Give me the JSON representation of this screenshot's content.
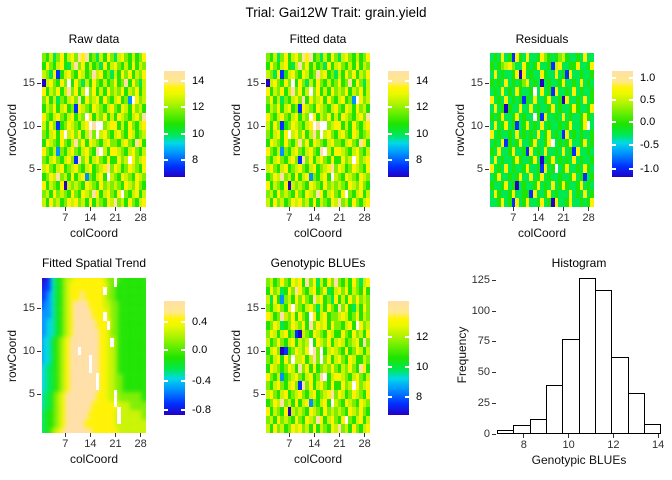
{
  "title": "Trial: Gai12W Trait: grain.yield",
  "palette": {
    "comment": "topo-colors style scale; grid chars 0-9 map to levels low to high, '.' = missing plot (white)",
    "levels": [
      "#2300C8",
      "#0030FF",
      "#0090FF",
      "#00D8E0",
      "#00E852",
      "#1EE400",
      "#7CEE00",
      "#C8F400",
      "#FFF200",
      "#FFDFA6"
    ],
    "missing": "#FFFFFF"
  },
  "colorbar_gradient": [
    [
      "#2300C8",
      0
    ],
    [
      "#0030FF",
      10
    ],
    [
      "#0090FF",
      22
    ],
    [
      "#00D8E8",
      32
    ],
    [
      "#00E852",
      40
    ],
    [
      "#1EE400",
      50
    ],
    [
      "#66EE00",
      60
    ],
    [
      "#B4F400",
      70
    ],
    [
      "#E8F800",
      78
    ],
    [
      "#FFF400",
      84
    ],
    [
      "#FFE98C",
      90
    ],
    [
      "#FFDFA6",
      100
    ]
  ],
  "chart_data": [
    {
      "type": "heatmap",
      "title": "Raw data",
      "xlabel": "colCoord",
      "ylabel": "rowCoord",
      "x_ticks": [
        7,
        14,
        21,
        28
      ],
      "y_ticks": [
        5,
        10,
        15
      ],
      "n_cols": 29,
      "n_rows": 18,
      "value_domain": [
        6.7,
        14.7
      ],
      "colorbar": [
        {
          "label": "14",
          "f": 0.09
        },
        {
          "label": "12",
          "f": 0.34
        },
        {
          "label": "10",
          "f": 0.59
        },
        {
          "label": "8",
          "f": 0.84
        }
      ],
      "grid_rows": [
        "65746857869895647586478657568",
        "58657854796857564857865758576",
        "76481578658756978564758685768",
        "0786586.586475865756856958647",
        "857685796857.6857586768576857",
        "6857465786958678586578562.867",
        "57685785618765876578658758675",
        "865786578576.8576857587657869",
        "7586156876578.9..678857586578",
        "657858.78685796.7865786587567",
        "58765865796858765786657865985",
        "8657265786578659.758876578657",
        "657865786196857865855867.8678",
        "78657856786578567896875687658",
        "568796758578265785.7658765876",
        "85765807676587658676765876865",
        "6758676586587698578658.657857",
        "75867568786758576587967586578"
      ]
    },
    {
      "type": "heatmap",
      "title": "Fitted data",
      "xlabel": "colCoord",
      "ylabel": "rowCoord",
      "x_ticks": [
        7,
        14,
        21,
        28
      ],
      "y_ticks": [
        5,
        10,
        15
      ],
      "n_cols": 29,
      "n_rows": 18,
      "value_domain": [
        6.7,
        14.7
      ],
      "colorbar": [
        {
          "label": "14",
          "f": 0.09
        },
        {
          "label": "12",
          "f": 0.34
        },
        {
          "label": "10",
          "f": 0.59
        },
        {
          "label": "8",
          "f": 0.84
        }
      ],
      "grid_rows": [
        "65746857869895647586478657568",
        "58657854796857564857865758576",
        "76481578658756978564758685768",
        "0786586.586475865756856958647",
        "857685796857.6857586768576857",
        "6857465786958678586578562.867",
        "57685785618765876578658758675",
        "865786578576.8576857587657869",
        "7586156876578.9..678857586578",
        "657858.78685796.7865786587567",
        "58765865796858765786657865985",
        "8657265786578659.758876578657",
        "657865786196857865855867.8678",
        "78657856786578567896875687658",
        "568796758578265785.7658765876",
        "85765807676587658676765876865",
        "6758676586587698578658.657857",
        "75867568786758576587967586578"
      ]
    },
    {
      "type": "heatmap",
      "title": "Residuals",
      "xlabel": "colCoord",
      "ylabel": "rowCoord",
      "x_ticks": [
        7,
        14,
        21,
        28
      ],
      "y_ticks": [
        5,
        10,
        15
      ],
      "n_cols": 29,
      "n_rows": 18,
      "value_domain": [
        -1.15,
        1.1
      ],
      "colorbar": [
        {
          "label": "1.0",
          "f": 0.07
        },
        {
          "label": "0.5",
          "f": 0.27
        },
        {
          "label": "0.0",
          "f": 0.48
        },
        {
          "label": "-0.5",
          "f": 0.7
        },
        {
          "label": "-1.0",
          "f": 0.92
        }
      ],
      "grid_rows": [
        "45484518548445865456754454844",
        "54567864485458445178445584458",
        "48454458084544854484518445445",
        "54548454568454045445844548454",
        "454845485445.4845184454845445",
        "84548454515484458445084454845",
        "48450544844845445845445854458",
        "545844584544.5184454845445854",
        "484584514584548454454584458.4",
        "84544548454548458454184545445",
        "45481545844584458.45458445845",
        "54844584451845484454845184454",
        "48454458544584045845454845445",
        "845484544584451845.4584454854",
        "45844545844845845445445845145",
        "54458450454458454845854458454",
        "48544584455184458454448454845",
        "44584518458445845084458445458"
      ]
    },
    {
      "type": "heatmap-smooth",
      "title": "Fitted Spatial Trend",
      "xlabel": "colCoord",
      "ylabel": "rowCoord",
      "x_ticks": [
        7,
        14,
        21,
        28
      ],
      "y_ticks": [
        5,
        10,
        15
      ],
      "n_cols": 29,
      "n_rows": 18,
      "value_domain": [
        -0.85,
        0.65
      ],
      "colorbar": [
        {
          "label": "0.4",
          "f": 0.18
        },
        {
          "label": "0.0",
          "f": 0.43
        },
        {
          "label": "-0.4",
          "f": 0.7
        },
        {
          "label": "-0.8",
          "f": 0.96
        }
      ],
      "grid_rows": [
        "00134567788888888766.55555555",
        "01134567888888888.66555555555",
        "11234567888988888766555555555",
        "12234567899998888776655555555",
        "22234567899999888.76655555555",
        "223345678999999888.6655555555",
        "22334567899999998876655555555",
        "2334567899999999887.655555555",
        "2334567899.999998877655555555",
        "2334567899999.998877655555555",
        "3344567899999.998877655555555",
        "334456789999999.8877665555555",
        "334456789999999.8877665555555",
        "34456789999999988877.66666655",
        "34456789999999888888.77766666",
        "445567899999988888887.7777766",
        "445567899999888888887.7777777",
        "44567899999999888888877777777"
      ]
    },
    {
      "type": "heatmap",
      "title": "Genotypic BLUEs",
      "xlabel": "colCoord",
      "ylabel": "rowCoord",
      "x_ticks": [
        7,
        14,
        21,
        28
      ],
      "y_ticks": [
        5,
        10,
        15
      ],
      "n_cols": 29,
      "n_rows": 18,
      "value_domain": [
        7.0,
        13.4
      ],
      "colorbar": [
        {
          "label": "12",
          "f": 0.32
        },
        {
          "label": "10",
          "f": 0.58
        },
        {
          "label": "8",
          "f": 0.84
        }
      ],
      "grid_rows": [
        "67568658785968475869657586478",
        "58674586986578568457868576585",
        "74852675868659785648575868676",
        "6578658.765786475865968547586",
        "875697685865.8578566787568576",
        "5687456876859687858665785.867",
        "68757856107658765875586586758",
        "756865785767.5876857875678596",
        "578601568768.96.5787658568757",
        "6578586.7785796.6857865875576",
        "58765687596858567686576865985",
        "8657256786578569.578876578657",
        "657865786196857865855867.8678",
        "78657856786578567896875687658",
        "568796758578265785.7658765876",
        "85765807676587658676765876865",
        "6758676586587698578658.657857",
        "75867568786758576587967586578"
      ]
    },
    {
      "type": "histogram",
      "title": "Histogram",
      "xlabel": "Genotypic BLUEs",
      "ylabel": "Frequency",
      "bin_start": 6.8,
      "bin_width": 0.73,
      "counts": [
        3,
        7,
        12,
        40,
        77,
        126,
        117,
        62,
        33,
        8
      ],
      "xlim": [
        6.8,
        14.13
      ],
      "ylim": [
        0,
        128
      ],
      "x_ticks": [
        8,
        10,
        12,
        14
      ],
      "y_ticks": [
        0,
        25,
        50,
        75,
        100,
        125
      ]
    }
  ]
}
